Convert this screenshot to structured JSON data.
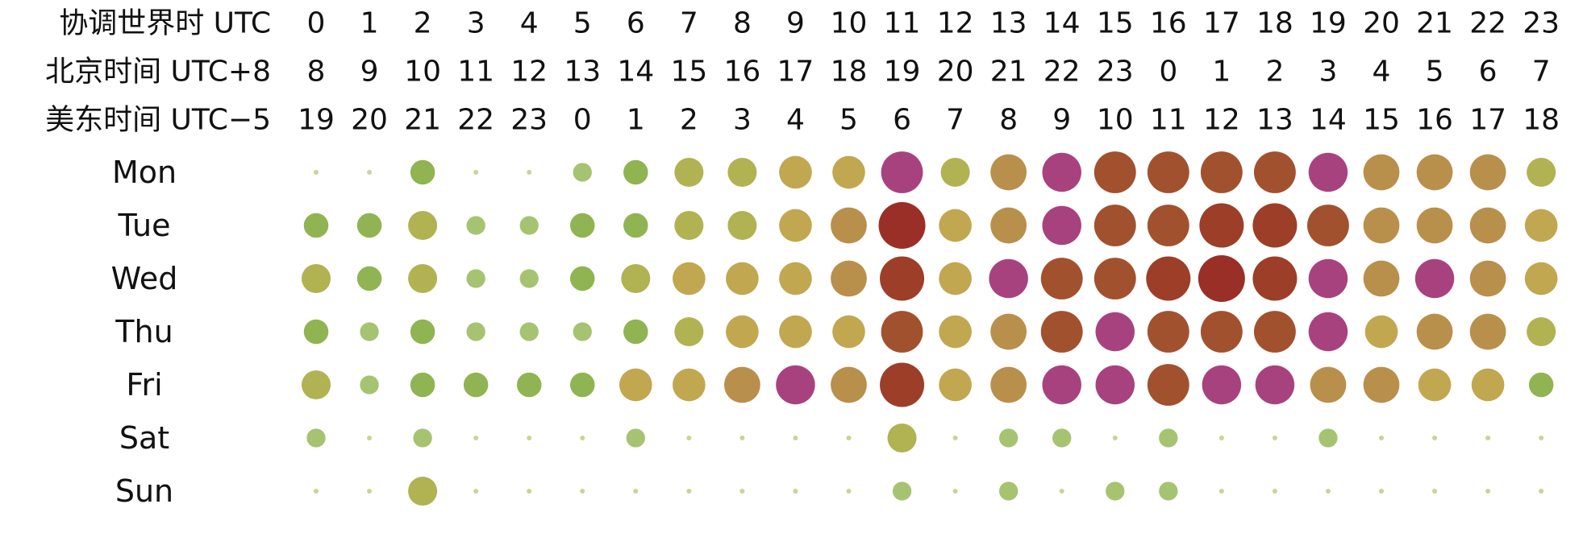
{
  "chart_data": {
    "type": "scatter",
    "style": "punchcard",
    "time_rows": [
      {
        "label": "协调世界时 UTC",
        "hours": [
          "0",
          "1",
          "2",
          "3",
          "4",
          "5",
          "6",
          "7",
          "8",
          "9",
          "10",
          "11",
          "12",
          "13",
          "14",
          "15",
          "16",
          "17",
          "18",
          "19",
          "20",
          "21",
          "22",
          "23"
        ]
      },
      {
        "label": "北京时间 UTC+8",
        "hours": [
          "8",
          "9",
          "10",
          "11",
          "12",
          "13",
          "14",
          "15",
          "16",
          "17",
          "18",
          "19",
          "20",
          "21",
          "22",
          "23",
          "0",
          "1",
          "2",
          "3",
          "4",
          "5",
          "6",
          "7"
        ]
      },
      {
        "label": "美东时间 UTC−5",
        "hours": [
          "19",
          "20",
          "21",
          "22",
          "23",
          "0",
          "1",
          "2",
          "3",
          "4",
          "5",
          "6",
          "7",
          "8",
          "9",
          "10",
          "11",
          "12",
          "13",
          "14",
          "15",
          "16",
          "17",
          "18"
        ]
      }
    ],
    "days": [
      "Mon",
      "Tue",
      "Wed",
      "Thu",
      "Fri",
      "Sat",
      "Sun"
    ],
    "values": [
      [
        1,
        1,
        3,
        1,
        1,
        2,
        3,
        4,
        4,
        5,
        5,
        8,
        4,
        6,
        7,
        8,
        8,
        8,
        8,
        7,
        6,
        6,
        6,
        4
      ],
      [
        3,
        3,
        4,
        2,
        2,
        3,
        3,
        4,
        4,
        5,
        6,
        10,
        5,
        6,
        7,
        8,
        8,
        9,
        9,
        8,
        6,
        6,
        6,
        5
      ],
      [
        4,
        3,
        4,
        2,
        2,
        3,
        4,
        5,
        5,
        5,
        6,
        9,
        5,
        7,
        8,
        8,
        9,
        10,
        9,
        7,
        6,
        7,
        6,
        5
      ],
      [
        3,
        2,
        3,
        2,
        2,
        2,
        3,
        4,
        5,
        5,
        5,
        8,
        5,
        6,
        8,
        7,
        8,
        8,
        8,
        7,
        5,
        6,
        6,
        4
      ],
      [
        4,
        2,
        3,
        3,
        3,
        3,
        5,
        5,
        6,
        7,
        6,
        9,
        5,
        6,
        7,
        7,
        8,
        7,
        7,
        6,
        6,
        5,
        5,
        3
      ],
      [
        2,
        1,
        2,
        1,
        1,
        1,
        2,
        1,
        1,
        1,
        1,
        4,
        1,
        2,
        2,
        1,
        2,
        1,
        1,
        2,
        1,
        1,
        1,
        1
      ],
      [
        1,
        1,
        4,
        1,
        1,
        1,
        1,
        1,
        1,
        1,
        1,
        2,
        1,
        2,
        1,
        2,
        2,
        1,
        1,
        1,
        1,
        1,
        1,
        1
      ]
    ],
    "highlighted": [
      [
        0,
        11
      ],
      [
        0,
        14
      ],
      [
        0,
        19
      ],
      [
        1,
        14
      ],
      [
        2,
        13
      ],
      [
        2,
        19
      ],
      [
        2,
        21
      ],
      [
        3,
        15
      ],
      [
        3,
        19
      ],
      [
        4,
        9
      ],
      [
        4,
        14
      ],
      [
        4,
        15
      ],
      [
        4,
        17
      ],
      [
        4,
        18
      ]
    ],
    "value_range": [
      1,
      10
    ],
    "color_scale": [
      "#c8d49a",
      "#8ab552",
      "#c4b052",
      "#b5874a",
      "#a04a2a",
      "#9a2f28"
    ],
    "highlight_color": "#a8427f"
  }
}
